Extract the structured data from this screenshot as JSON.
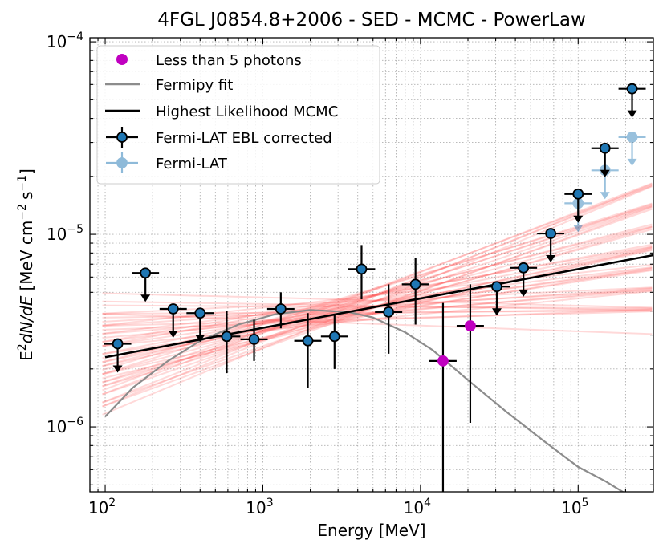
{
  "chart_data": {
    "type": "scatter",
    "title": "4FGL J0854.8+2006 - SED - MCMC - PowerLaw",
    "xlabel": "Energy [MeV]",
    "ylabel_parts": {
      "base": "E",
      "sup": "2",
      "mid": "dN/dE",
      "unit_open": "[MeV cm",
      "unit_sup1": "−2",
      "unit_mid": "s",
      "unit_sup2": "−1",
      "unit_close": "]"
    },
    "xscale": "log",
    "yscale": "log",
    "xlim": [
      80,
      300000
    ],
    "ylim": [
      4.6e-07,
      0.000105
    ],
    "x_ticks": [
      {
        "value": 100,
        "base": "10",
        "exp": "2"
      },
      {
        "value": 1000,
        "base": "10",
        "exp": "3"
      },
      {
        "value": 10000,
        "base": "10",
        "exp": "4"
      },
      {
        "value": 100000,
        "base": "10",
        "exp": "5"
      }
    ],
    "y_ticks": [
      {
        "value": 1e-06,
        "base": "10",
        "exp": "−6"
      },
      {
        "value": 1e-05,
        "base": "10",
        "exp": "−5"
      },
      {
        "value": 0.0001,
        "base": "10",
        "exp": "−4"
      }
    ],
    "grid": true,
    "legend_position": "top-left",
    "legend": [
      {
        "key": "lowphot",
        "label": "Less than 5 photons"
      },
      {
        "key": "fermipy",
        "label": "Fermipy fit"
      },
      {
        "key": "mcmc",
        "label": "Highest Likelihood MCMC"
      },
      {
        "key": "ebl",
        "label": "Fermi-LAT EBL corrected"
      },
      {
        "key": "lat",
        "label": "Fermi-LAT"
      }
    ],
    "colors": {
      "ebl_marker": "#1f77b4",
      "lat_marker": "#7fb3da",
      "low_photons": "#c000c0",
      "fermipy": "#8c8c8c",
      "mcmc": "#000000",
      "samples": "#ff4040"
    },
    "highest_likelihood_mcmc": {
      "e0": 100,
      "f0": 2.3e-06,
      "e1": 300000,
      "f1": 7.8e-06
    },
    "fermipy_fit": {
      "x": [
        100,
        150,
        250,
        400,
        700,
        1200,
        2000,
        3500,
        5000,
        8000,
        12000,
        20000,
        35000,
        60000,
        100000,
        150000,
        230000
      ],
      "y": [
        1.13e-06,
        1.6e-06,
        2.2e-06,
        2.8e-06,
        3.4e-06,
        3.85e-06,
        4.05e-06,
        3.95e-06,
        3.7e-06,
        3.1e-06,
        2.5e-06,
        1.75e-06,
        1.2e-06,
        8.5e-07,
        6.2e-07,
        5.2e-07,
        4.2e-07
      ]
    },
    "mcmc_samples": {
      "count": 44,
      "pivot_energy": 3000,
      "pivot_flux": 4e-06,
      "log_index_min": -0.03,
      "log_index_max": 0.34
    },
    "series": [
      {
        "name": "Fermi-LAT EBL corrected",
        "points": [
          {
            "x": 120,
            "y": 2.7e-06,
            "ul": true
          },
          {
            "x": 180,
            "y": 6.3e-06,
            "ul": true
          },
          {
            "x": 270,
            "y": 4.1e-06,
            "ul": true
          },
          {
            "x": 400,
            "y": 3.9e-06,
            "ul": true
          },
          {
            "x": 590,
            "y": 2.95e-06,
            "ylo": 1.9e-06,
            "yhi": 4e-06
          },
          {
            "x": 880,
            "y": 2.85e-06,
            "ylo": 2.2e-06,
            "yhi": 3.6e-06
          },
          {
            "x": 1300,
            "y": 4.1e-06,
            "ylo": 3.25e-06,
            "yhi": 5e-06
          },
          {
            "x": 1930,
            "y": 2.8e-06,
            "ylo": 1.6e-06,
            "yhi": 3.9e-06
          },
          {
            "x": 2850,
            "y": 2.95e-06,
            "ylo": 2e-06,
            "yhi": 3.8e-06
          },
          {
            "x": 4230,
            "y": 6.6e-06,
            "ylo": 4.6e-06,
            "yhi": 8.8e-06
          },
          {
            "x": 6280,
            "y": 3.95e-06,
            "ylo": 2.4e-06,
            "yhi": 5.5e-06
          },
          {
            "x": 9300,
            "y": 5.5e-06,
            "ylo": 3.4e-06,
            "yhi": 7.5e-06
          },
          {
            "x": 30500,
            "y": 5.35e-06,
            "ul": true
          },
          {
            "x": 45000,
            "y": 6.7e-06,
            "ul": true
          },
          {
            "x": 67000,
            "y": 1.01e-05,
            "ul": true
          },
          {
            "x": 100000,
            "y": 1.62e-05,
            "ul": true
          },
          {
            "x": 148000,
            "y": 2.8e-05,
            "ul": true
          },
          {
            "x": 220000,
            "y": 5.7e-05,
            "ul": true
          }
        ]
      },
      {
        "name": "Fermi-LAT",
        "points": [
          {
            "x": 100000,
            "y": 1.45e-05,
            "ul": true
          },
          {
            "x": 148000,
            "y": 2.15e-05,
            "ul": true
          },
          {
            "x": 220000,
            "y": 3.2e-05,
            "ul": true
          }
        ]
      },
      {
        "name": "Less than 5 photons",
        "points": [
          {
            "x": 13900,
            "y": 2.2e-06,
            "ylo": 4.6e-07,
            "yhi": 4.4e-06
          },
          {
            "x": 20700,
            "y": 3.35e-06,
            "ylo": 1.05e-06,
            "yhi": 5.5e-06
          }
        ]
      }
    ]
  }
}
